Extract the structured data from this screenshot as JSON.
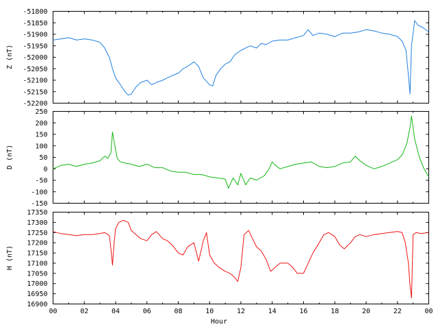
{
  "chart_data": [
    {
      "type": "line",
      "ylabel": "Z (nT)",
      "ylim": [
        -52200,
        -51800
      ],
      "yticks": [
        -51800,
        -51850,
        -51900,
        -51950,
        -52000,
        -52050,
        -52100,
        -52150,
        -52200
      ],
      "xlim": [
        0,
        24
      ],
      "color": "#1e7fe0",
      "series": [
        {
          "x": [
            0,
            0.5,
            1,
            1.5,
            2,
            2.5,
            3,
            3.3,
            3.6,
            3.8,
            4,
            4.2,
            4.4,
            4.6,
            4.8,
            5,
            5.3,
            5.6,
            6,
            6.3,
            6.6,
            7,
            7.3,
            7.6,
            8,
            8.3,
            8.6,
            9,
            9.3,
            9.6,
            10,
            10.2,
            10.4,
            10.7,
            11,
            11.3,
            11.6,
            12,
            12.3,
            12.6,
            13,
            13.3,
            13.6,
            14,
            14.5,
            15,
            15.5,
            16,
            16.3,
            16.6,
            17,
            17.5,
            18,
            18.5,
            19,
            19.5,
            20,
            20.5,
            21,
            21.5,
            22,
            22.3,
            22.55,
            22.7,
            22.8,
            22.9,
            23.1,
            23.3,
            23.6,
            24
          ],
          "y": [
            -51925,
            -51920,
            -51915,
            -51925,
            -51920,
            -51925,
            -51935,
            -51960,
            -52000,
            -52050,
            -52090,
            -52110,
            -52130,
            -52150,
            -52165,
            -52160,
            -52130,
            -52110,
            -52100,
            -52120,
            -52110,
            -52100,
            -52090,
            -52080,
            -52070,
            -52050,
            -52040,
            -52020,
            -52040,
            -52090,
            -52120,
            -52125,
            -52080,
            -52050,
            -52030,
            -52020,
            -51990,
            -51970,
            -51960,
            -51950,
            -51960,
            -51940,
            -51945,
            -51930,
            -51925,
            -51925,
            -51915,
            -51905,
            -51880,
            -51905,
            -51895,
            -51900,
            -51910,
            -51895,
            -51895,
            -51890,
            -51880,
            -51885,
            -51895,
            -51900,
            -51910,
            -51930,
            -51970,
            -52080,
            -52160,
            -51950,
            -51840,
            -51860,
            -51870,
            -51890
          ]
        }
      ]
    },
    {
      "type": "line",
      "ylabel": "D (nT)",
      "ylim": [
        -150,
        250
      ],
      "yticks": [
        250,
        200,
        150,
        100,
        50,
        0,
        -50,
        -100,
        -150
      ],
      "xlim": [
        0,
        24
      ],
      "color": "#11b511",
      "series": [
        {
          "x": [
            0,
            0.5,
            1,
            1.5,
            2,
            2.5,
            3,
            3.3,
            3.5,
            3.7,
            3.8,
            3.9,
            4.1,
            4.3,
            4.6,
            5,
            5.5,
            6,
            6.5,
            7,
            7.5,
            8,
            8.5,
            9,
            9.5,
            10,
            10.5,
            11,
            11.2,
            11.5,
            11.8,
            12,
            12.3,
            12.6,
            13,
            13.5,
            13.8,
            14,
            14.2,
            14.5,
            15,
            15.5,
            16,
            16.5,
            17,
            17.5,
            18,
            18.5,
            19,
            19.3,
            19.6,
            20,
            20.5,
            21,
            21.5,
            22,
            22.3,
            22.6,
            22.8,
            22.9,
            23.1,
            23.4,
            23.7,
            24
          ],
          "y": [
            0,
            15,
            20,
            10,
            20,
            25,
            35,
            55,
            45,
            70,
            160,
            120,
            45,
            30,
            25,
            20,
            10,
            20,
            5,
            5,
            -10,
            -15,
            -15,
            -25,
            -25,
            -35,
            -40,
            -45,
            -85,
            -40,
            -70,
            -20,
            -70,
            -40,
            -50,
            -30,
            0,
            30,
            15,
            0,
            10,
            20,
            25,
            30,
            10,
            5,
            10,
            25,
            30,
            55,
            35,
            15,
            0,
            10,
            25,
            40,
            60,
            110,
            180,
            230,
            130,
            50,
            0,
            -35
          ]
        }
      ]
    },
    {
      "type": "line",
      "ylabel": "H (nT)",
      "xlabel": "Hour",
      "ylim": [
        16900,
        17350
      ],
      "yticks": [
        17350,
        17300,
        17250,
        17200,
        17150,
        17100,
        17050,
        17000,
        16950,
        16900
      ],
      "xlim": [
        0,
        24
      ],
      "xticks": [
        "00",
        "02",
        "04",
        "06",
        "08",
        "10",
        "12",
        "14",
        "16",
        "18",
        "20",
        "22",
        "00"
      ],
      "color": "#ee1111",
      "series": [
        {
          "x": [
            0,
            0.5,
            1,
            1.5,
            2,
            2.5,
            3,
            3.3,
            3.6,
            3.7,
            3.8,
            3.9,
            4,
            4.2,
            4.5,
            4.8,
            5,
            5.3,
            5.6,
            6,
            6.3,
            6.6,
            7,
            7.3,
            7.6,
            8,
            8.3,
            8.6,
            9,
            9.3,
            9.6,
            9.8,
            10,
            10.3,
            10.6,
            11,
            11.3,
            11.6,
            11.8,
            12,
            12.2,
            12.5,
            12.8,
            13,
            13.3,
            13.6,
            13.9,
            14.2,
            14.5,
            15,
            15.3,
            15.6,
            16,
            16.3,
            16.6,
            17,
            17.3,
            17.6,
            18,
            18.3,
            18.6,
            19,
            19.3,
            19.6,
            20,
            20.5,
            21,
            21.5,
            22,
            22.3,
            22.5,
            22.7,
            22.8,
            22.9,
            23,
            23.2,
            23.5,
            24
          ],
          "y": [
            17255,
            17245,
            17240,
            17235,
            17240,
            17240,
            17245,
            17250,
            17235,
            17170,
            17090,
            17200,
            17270,
            17300,
            17310,
            17300,
            17260,
            17240,
            17220,
            17210,
            17240,
            17255,
            17220,
            17210,
            17190,
            17150,
            17140,
            17180,
            17200,
            17110,
            17210,
            17250,
            17140,
            17100,
            17080,
            17060,
            17050,
            17030,
            17010,
            17080,
            17240,
            17260,
            17210,
            17180,
            17160,
            17120,
            17060,
            17080,
            17100,
            17100,
            17080,
            17050,
            17050,
            17100,
            17150,
            17200,
            17240,
            17250,
            17230,
            17190,
            17170,
            17200,
            17230,
            17240,
            17230,
            17240,
            17245,
            17250,
            17255,
            17250,
            17200,
            17100,
            16990,
            16930,
            17240,
            17250,
            17245,
            17250
          ]
        }
      ]
    }
  ]
}
